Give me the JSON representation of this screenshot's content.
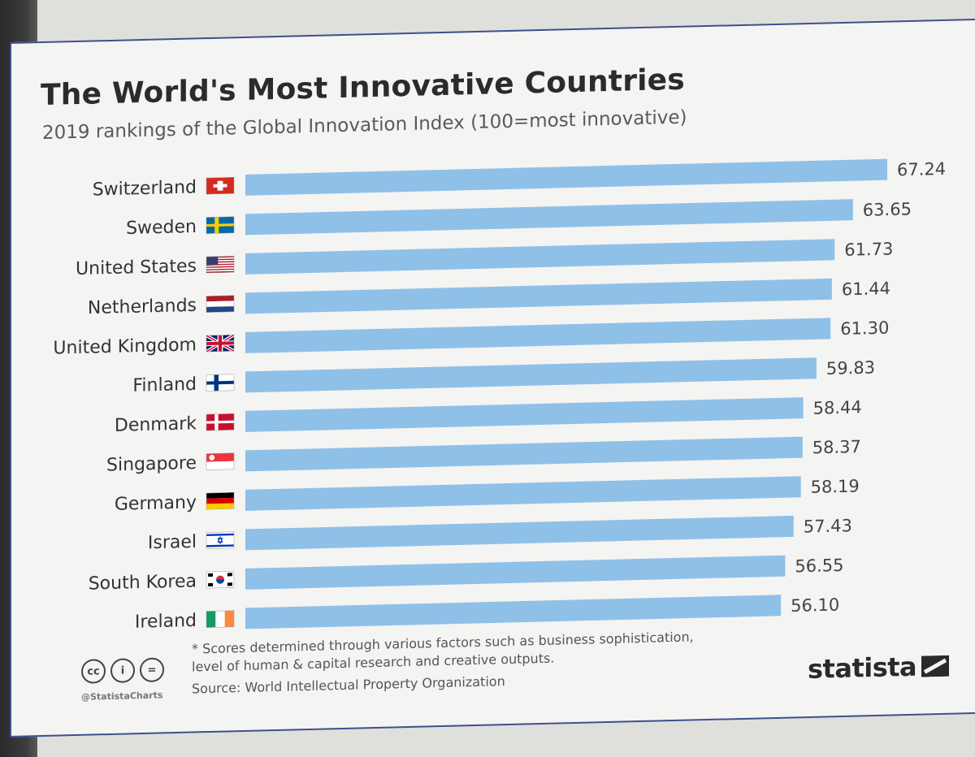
{
  "header": {
    "title": "The World's Most Innovative Countries",
    "subtitle": "2019 rankings of the Global Innovation Index (100=most innovative)"
  },
  "chart_data": {
    "type": "bar",
    "orientation": "horizontal",
    "title": "The World's Most Innovative Countries",
    "subtitle": "2019 rankings of the Global Innovation Index (100=most innovative)",
    "categories": [
      "Switzerland",
      "Sweden",
      "United States",
      "Netherlands",
      "United Kingdom",
      "Finland",
      "Denmark",
      "Singapore",
      "Germany",
      "Israel",
      "South Korea",
      "Ireland"
    ],
    "values": [
      67.24,
      63.65,
      61.73,
      61.44,
      61.3,
      59.83,
      58.44,
      58.37,
      58.19,
      57.43,
      56.55,
      56.1
    ],
    "value_labels": [
      "67.24",
      "63.65",
      "61.73",
      "61.44",
      "61.30",
      "59.83",
      "58.44",
      "58.37",
      "58.19",
      "57.43",
      "56.55",
      "56.10"
    ],
    "flags": [
      "switzerland-flag",
      "sweden-flag",
      "united-states-flag",
      "netherlands-flag",
      "united-kingdom-flag",
      "finland-flag",
      "denmark-flag",
      "singapore-flag",
      "germany-flag",
      "israel-flag",
      "south-korea-flag",
      "ireland-flag"
    ],
    "xlim": [
      0,
      70
    ],
    "bar_color": "#8fc0e8",
    "xlabel": "",
    "ylabel": ""
  },
  "footer": {
    "footnote": "* Scores determined through various factors such as business sophistication, level of human & capital research and creative outputs.",
    "source": "Source: World Intellectual Property Organization",
    "handle": "@StatistaCharts",
    "brand": "statista",
    "license_icons": [
      "cc-icon",
      "by-icon",
      "nd-icon"
    ]
  }
}
